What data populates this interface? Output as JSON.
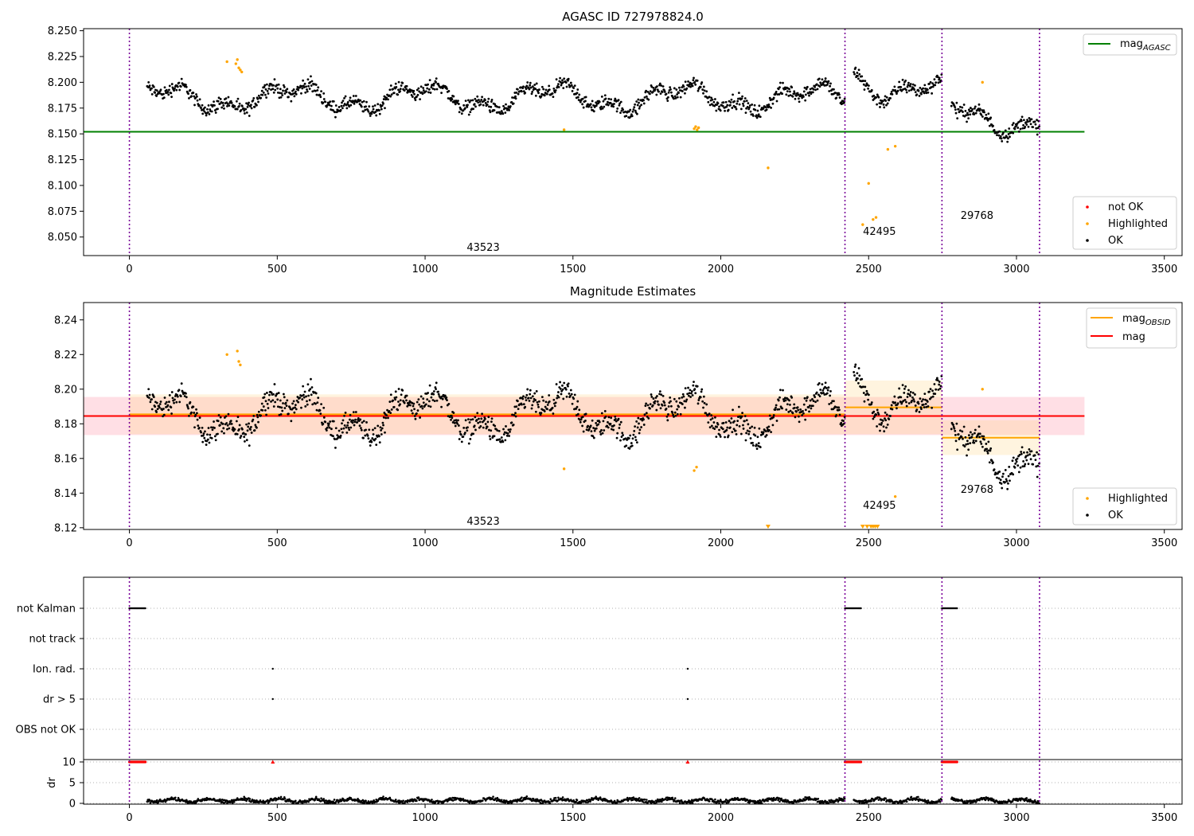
{
  "chart_data": {
    "type": "scatter",
    "x_ticks": [
      0,
      500,
      1000,
      1500,
      2000,
      2500,
      3000,
      3500
    ],
    "xlim": [
      -155,
      3560
    ],
    "obs_boundaries": [
      0,
      2420,
      2748,
      3078
    ],
    "obs_labels": [
      {
        "text": "43523",
        "x": 1210
      },
      {
        "text": "42495",
        "x": 2550
      },
      {
        "text": "29768",
        "x": 2880
      }
    ],
    "segments": [
      {
        "x0": 60,
        "x1": 2420,
        "base": 8.185
      },
      {
        "x0": 2450,
        "x1": 2748,
        "base": 8.19
      },
      {
        "x0": 2780,
        "x1": 3078,
        "base": 8.172
      }
    ],
    "panels": [
      {
        "title": "AGASC ID 727978824.0",
        "ylim": [
          8.032,
          8.252
        ],
        "y_ticks": [
          "8.050",
          "8.075",
          "8.100",
          "8.125",
          "8.150",
          "8.175",
          "8.200",
          "8.225",
          "8.250"
        ],
        "mag_agasc": {
          "value": 8.152,
          "x0": -155,
          "x1": 3230,
          "color": "#008000"
        },
        "highlighted_points": [
          {
            "x": 1470,
            "y": 8.154
          },
          {
            "x": 2160,
            "y": 8.117
          },
          {
            "x": 2480,
            "y": 8.062
          },
          {
            "x": 2500,
            "y": 8.102
          },
          {
            "x": 2515,
            "y": 8.067
          },
          {
            "x": 2525,
            "y": 8.069
          },
          {
            "x": 2565,
            "y": 8.135
          },
          {
            "x": 2590,
            "y": 8.138
          },
          {
            "x": 330,
            "y": 8.22
          },
          {
            "x": 360,
            "y": 8.218
          },
          {
            "x": 365,
            "y": 8.222
          },
          {
            "x": 370,
            "y": 8.214
          },
          {
            "x": 375,
            "y": 8.212
          },
          {
            "x": 380,
            "y": 8.21
          },
          {
            "x": 1910,
            "y": 8.155
          },
          {
            "x": 1915,
            "y": 8.157
          },
          {
            "x": 1920,
            "y": 8.154
          },
          {
            "x": 1925,
            "y": 8.156
          },
          {
            "x": 2885,
            "y": 8.2
          }
        ],
        "legend_lines": [
          {
            "label": "mag",
            "sub": "AGASC",
            "color": "#008000"
          }
        ],
        "legend_points": [
          {
            "label": "not OK",
            "color": "#ff0000"
          },
          {
            "label": "Highlighted",
            "color": "#ffa500"
          },
          {
            "label": "OK",
            "color": "#000000"
          }
        ]
      },
      {
        "title": "Magnitude Estimates",
        "ylim": [
          8.119,
          8.25
        ],
        "y_ticks": [
          "8.12",
          "8.14",
          "8.16",
          "8.18",
          "8.20",
          "8.22",
          "8.24"
        ],
        "mag": {
          "value": 8.1845,
          "band_lo": 8.1735,
          "band_hi": 8.1955,
          "x0": -155,
          "x1": 3230,
          "color": "#ff0000"
        },
        "mag_obsid": [
          {
            "x0": 0,
            "x1": 2420,
            "value": 8.1855,
            "lo": 8.174,
            "hi": 8.197
          },
          {
            "x0": 2420,
            "x1": 2748,
            "value": 8.1895,
            "lo": 8.174,
            "hi": 8.205
          },
          {
            "x0": 2748,
            "x1": 3078,
            "value": 8.172,
            "lo": 8.162,
            "hi": 8.182
          }
        ],
        "highlighted_points": [
          {
            "x": 1470,
            "y": 8.154
          },
          {
            "x": 330,
            "y": 8.22
          },
          {
            "x": 365,
            "y": 8.222
          },
          {
            "x": 370,
            "y": 8.216
          },
          {
            "x": 375,
            "y": 8.214
          },
          {
            "x": 1910,
            "y": 8.153
          },
          {
            "x": 1918,
            "y": 8.155
          },
          {
            "x": 2885,
            "y": 8.2
          },
          {
            "x": 2590,
            "y": 8.138
          }
        ],
        "clipped_points_x": [
          2160,
          2480,
          2495,
          2508,
          2515,
          2522,
          2530
        ],
        "legend_lines": [
          {
            "label": "mag",
            "sub": "OBSID",
            "color": "#ffa500"
          },
          {
            "label": "mag",
            "sub": "",
            "color": "#ff0000"
          }
        ],
        "legend_points": [
          {
            "label": "Highlighted",
            "color": "#ffa500"
          },
          {
            "label": "OK",
            "color": "#000000"
          }
        ]
      },
      {
        "title": "",
        "flag_labels": [
          "not Kalman",
          "not track",
          "Ion. rad.",
          "dr > 5",
          "OBS not OK"
        ],
        "flag_points": [
          {
            "flag": "not Kalman",
            "ranges": [
              [
                0,
                55
              ],
              [
                2420,
                2475
              ],
              [
                2748,
                2800
              ]
            ]
          },
          {
            "flag": "Ion. rad.",
            "points": [
              485,
              1888
            ]
          },
          {
            "flag": "dr > 5",
            "points": [
              485,
              1888
            ]
          }
        ],
        "dr_ylabel": "dr",
        "dr_ticks": [
          "0",
          "5",
          "10"
        ],
        "dr_ylim": [
          0,
          10
        ],
        "dr_clipped": {
          "ranges": [
            [
              0,
              55
            ],
            [
              2420,
              2475
            ],
            [
              2748,
              2800
            ]
          ],
          "points": [
            485,
            1888
          ]
        }
      }
    ]
  }
}
